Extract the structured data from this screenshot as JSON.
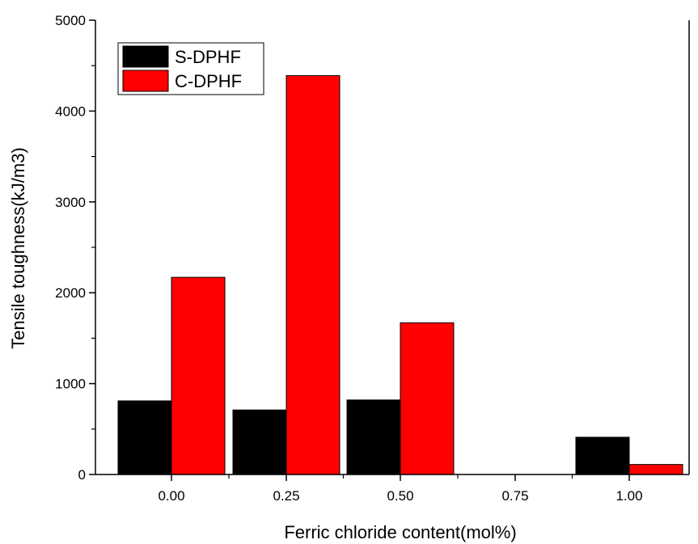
{
  "chart_data": {
    "type": "bar",
    "xlabel": "Ferric chloride content(mol%)",
    "ylabel": "Tensile toughness(kJ/m3)",
    "categories": [
      "0.00",
      "0.25",
      "0.50",
      "0.75",
      "1.00"
    ],
    "y_ticks": [
      "0",
      "1000",
      "2000",
      "3000",
      "4000",
      "5000"
    ],
    "ylim": [
      0,
      5000
    ],
    "series": [
      {
        "name": "S-DPHF",
        "color": "#000000",
        "values": [
          810,
          710,
          820,
          null,
          410
        ]
      },
      {
        "name": "C-DPHF",
        "color": "#ff0000",
        "values": [
          2170,
          4390,
          1670,
          null,
          110
        ]
      }
    ],
    "legend_position": "top-left",
    "grid": false
  }
}
